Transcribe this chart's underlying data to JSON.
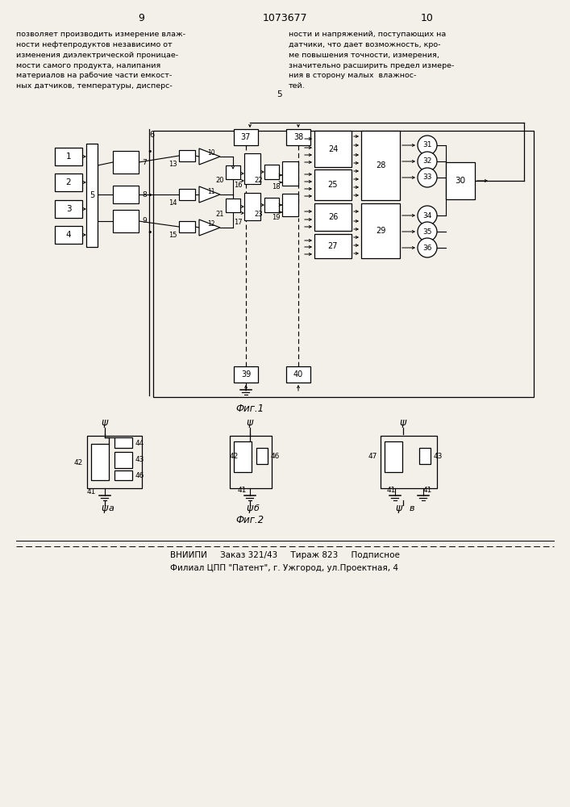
{
  "bg": "#f2f0e8",
  "page_left": "9",
  "page_center": "1073677",
  "page_right": "10",
  "text_left": "позволяет производить измерение влаж-\nности нефтепродуктов независимо от\nизменения диэлектрической проницае-\nмости самого продукта, налипания\nматериалов на рабочие части емкост-\nных датчиков, температуры, дисперс-",
  "text_right": "ности и напряжений, поступающих на\nдатчики, что дает возможность, кро-\nме повышения точности, измерения,\nзначительно расширить предел измере-\nния в сторону малых  влажнос-\nтей.",
  "num5": "5",
  "fig1_label": "Фиг.1",
  "fig2_label": "Фиг.2",
  "footer1": "ВНИИПИ     Заказ 321/43     Тираж 823     Подписное",
  "footer2": "Филиал ЦПП \"Патент\", г. Ужгород, ул.Проектная, 4"
}
